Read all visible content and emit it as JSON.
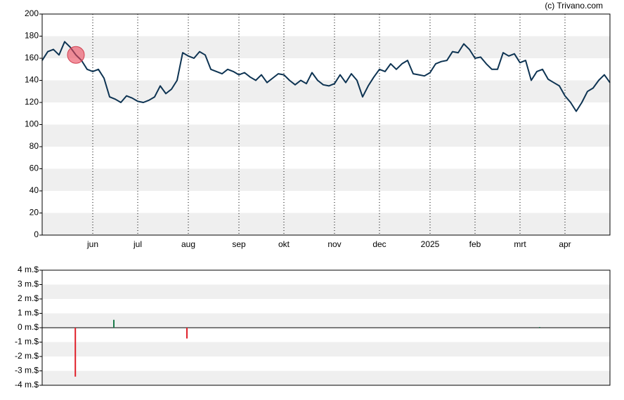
{
  "attribution": "(c) Trivano.com",
  "chart_data": [
    {
      "type": "line",
      "categories": [
        null,
        null,
        null,
        null,
        null,
        null,
        null,
        null,
        null,
        "jun",
        null,
        null,
        null,
        null,
        null,
        null,
        null,
        "jul",
        null,
        null,
        null,
        null,
        null,
        null,
        null,
        null,
        "aug",
        null,
        null,
        null,
        null,
        null,
        null,
        null,
        null,
        "sep",
        null,
        null,
        null,
        null,
        null,
        null,
        null,
        "okt",
        null,
        null,
        null,
        null,
        null,
        null,
        null,
        null,
        "nov",
        null,
        null,
        null,
        null,
        null,
        null,
        null,
        "dec",
        null,
        null,
        null,
        null,
        null,
        null,
        null,
        null,
        "2025",
        null,
        null,
        null,
        null,
        null,
        null,
        null,
        "feb",
        null,
        null,
        null,
        null,
        null,
        null,
        null,
        "mrt",
        null,
        null,
        null,
        null,
        null,
        null,
        null,
        "apr",
        null,
        null,
        null,
        null,
        null,
        null,
        null,
        null
      ],
      "series": [
        {
          "color": "#0d3352",
          "values": [
            158,
            166,
            168,
            163,
            175,
            170,
            163,
            158,
            150,
            148,
            150,
            142,
            125,
            123,
            120,
            126,
            124,
            121,
            120,
            122,
            125,
            135,
            128,
            132,
            140,
            165,
            162,
            160,
            166,
            163,
            150,
            148,
            146,
            150,
            148,
            145,
            147,
            143,
            140,
            145,
            138,
            142,
            146,
            145,
            140,
            136,
            140,
            137,
            147,
            140,
            136,
            135,
            137,
            145,
            138,
            146,
            140,
            125,
            135,
            143,
            150,
            148,
            155,
            150,
            155,
            158,
            146,
            145,
            144,
            147,
            155,
            157,
            158,
            166,
            165,
            173,
            168,
            160,
            161,
            155,
            150,
            150,
            165,
            162,
            164,
            156,
            158,
            140,
            148,
            150,
            141,
            138,
            135,
            126,
            120,
            112,
            120,
            130,
            133,
            140,
            145,
            138
          ]
        }
      ],
      "ylim": [
        0,
        200
      ],
      "yticks": [
        0,
        20,
        40,
        60,
        80,
        100,
        120,
        140,
        160,
        180,
        200
      ],
      "grid": "bands"
    },
    {
      "type": "bar",
      "x": [
        5.9,
        12.75,
        25.75,
        88.5
      ],
      "xlim": [
        0,
        101
      ],
      "values": [
        -3.4,
        0.55,
        -0.75,
        0.05
      ],
      "colors": [
        "#e0202a",
        "#1a7a4a",
        "#e0202a",
        "#1a7a4a"
      ],
      "ylim": [
        -4,
        4
      ],
      "yticks": [
        {
          "value": 4,
          "label": "4 m.$"
        },
        {
          "value": 3,
          "label": "3 m.$"
        },
        {
          "value": 2,
          "label": "2 m.$"
        },
        {
          "value": 1,
          "label": "1 m.$"
        },
        {
          "value": 0,
          "label": "0 m.$"
        },
        {
          "value": -1,
          "label": "-1 m.$"
        },
        {
          "value": -2,
          "label": "-2 m.$"
        },
        {
          "value": -3,
          "label": "-3 m.$"
        },
        {
          "value": -4,
          "label": "-4 m.$"
        }
      ],
      "grid": "bands"
    }
  ]
}
